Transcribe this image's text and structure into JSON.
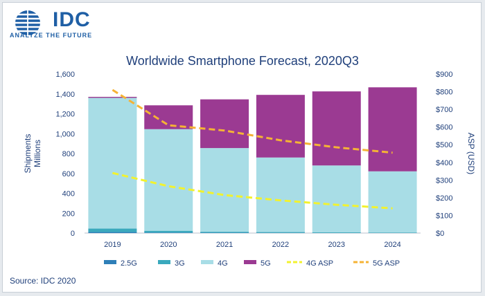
{
  "logo": {
    "name": "IDC",
    "tagline": "ANALYZE THE FUTURE",
    "color": "#1f5fa5"
  },
  "source": "Source: IDC 2020",
  "chart_data": {
    "type": "bar",
    "title": "Worldwide Smartphone Forecast, 2020Q3",
    "categories": [
      "2019",
      "2020",
      "2021",
      "2022",
      "2023",
      "2024"
    ],
    "ylabel": "Shipments\nMillions",
    "y2label": "ASP (USD)",
    "ylim": [
      0,
      1600
    ],
    "y2lim": [
      0,
      900
    ],
    "yticks": [
      "0",
      "200",
      "400",
      "600",
      "800",
      "1,000",
      "1,200",
      "1,400",
      "1,600"
    ],
    "y2ticks": [
      "$0",
      "$100",
      "$200",
      "$300",
      "$400",
      "$500",
      "$600",
      "$700",
      "$800",
      "$900"
    ],
    "stacked": true,
    "legend_position": "bottom",
    "grid": false,
    "series": [
      {
        "name": "2.5G",
        "kind": "bar",
        "color": "#2e7fb8",
        "values": [
          10,
          5,
          3,
          2,
          1,
          1
        ]
      },
      {
        "name": "3G",
        "kind": "bar",
        "color": "#3aa9bd",
        "values": [
          35,
          18,
          10,
          8,
          6,
          5
        ]
      },
      {
        "name": "4G",
        "kind": "bar",
        "color": "#a8dde6",
        "values": [
          1315,
          1022,
          842,
          750,
          673,
          615
        ]
      },
      {
        "name": "5G",
        "kind": "bar",
        "color": "#9b3a92",
        "values": [
          10,
          240,
          490,
          630,
          745,
          845
        ]
      },
      {
        "name": "4G ASP",
        "kind": "line",
        "axis": "right",
        "color": "#f2f22e",
        "values": [
          340,
          265,
          215,
          185,
          160,
          140
        ]
      },
      {
        "name": "5G ASP",
        "kind": "line",
        "axis": "right",
        "color": "#f5b335",
        "values": [
          810,
          610,
          580,
          525,
          485,
          455
        ]
      }
    ]
  }
}
